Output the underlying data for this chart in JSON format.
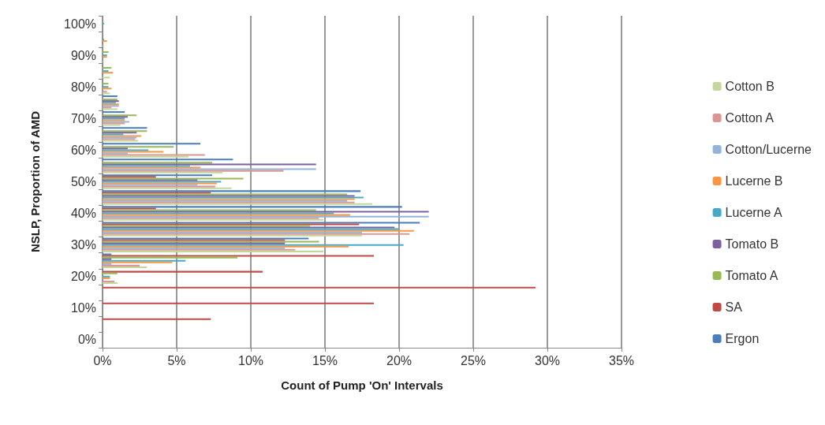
{
  "chart_data": {
    "type": "bar",
    "orientation": "horizontal",
    "xlabel": "Count of Pump 'On' Intervals",
    "ylabel": "NSLP, Proportion of AMD",
    "categories": [
      "100%",
      null,
      "90%",
      null,
      "80%",
      null,
      "70%",
      null,
      "60%",
      null,
      "50%",
      null,
      "40%",
      null,
      "30%",
      null,
      "20%",
      null,
      "10%",
      null,
      "0%"
    ],
    "xlim": [
      0,
      35
    ],
    "xticks": [
      {
        "value": 0,
        "label": "0%"
      },
      {
        "value": 5,
        "label": "5%"
      },
      {
        "value": 10,
        "label": "10%"
      },
      {
        "value": 15,
        "label": "15%"
      },
      {
        "value": 20,
        "label": "20%"
      },
      {
        "value": 25,
        "label": "25%"
      },
      {
        "value": 30,
        "label": "30%"
      },
      {
        "value": 35,
        "label": "35%"
      }
    ],
    "grid": "x",
    "legend": "right",
    "series": [
      {
        "name": "Ergon",
        "color": "#4a7ebb",
        "values": [
          0,
          0,
          0,
          0,
          0,
          1.0,
          1.5,
          3.0,
          6.6,
          8.8,
          7.4,
          17.4,
          20.2,
          21.4,
          13.9,
          0.6,
          0,
          0,
          0,
          0,
          0
        ]
      },
      {
        "name": "SA",
        "color": "#be4b48",
        "values": [
          0,
          0,
          0,
          0,
          0,
          0,
          0,
          0,
          0,
          0,
          3.6,
          7.3,
          3.6,
          17.3,
          12.3,
          18.3,
          10.8,
          29.2,
          18.3,
          7.3,
          0
        ]
      },
      {
        "name": "Tomato A",
        "color": "#98b954",
        "values": [
          0,
          0,
          0.4,
          0.6,
          0.4,
          1.0,
          2.3,
          3.0,
          4.8,
          7.4,
          9.5,
          16.5,
          14.4,
          14.0,
          14.6,
          9.1,
          1.0,
          0,
          0,
          0,
          0
        ]
      },
      {
        "name": "Tomato B",
        "color": "#7d60a0",
        "values": [
          0,
          0,
          0,
          0,
          0,
          1.1,
          1.7,
          2.3,
          1.7,
          14.4,
          6.4,
          17.0,
          22.0,
          19.7,
          12.3,
          0.6,
          0,
          0,
          0,
          0,
          0
        ]
      },
      {
        "name": "Lucerne A",
        "color": "#46aac5",
        "values": [
          0.1,
          0.1,
          0.3,
          0.4,
          0.4,
          0.9,
          1.5,
          1.4,
          3.1,
          5.9,
          8.0,
          17.6,
          15.6,
          20.0,
          20.3,
          5.6,
          0.5,
          0,
          0,
          0,
          0
        ]
      },
      {
        "name": "Lucerne B",
        "color": "#f79646",
        "values": [
          0,
          0.3,
          0.3,
          0.7,
          0.6,
          1.1,
          1.5,
          2.6,
          4.1,
          6.6,
          7.7,
          17.0,
          16.7,
          21.0,
          16.6,
          4.7,
          0.5,
          0,
          0,
          0,
          0
        ]
      },
      {
        "name": "Cotton/Lucerne",
        "color": "#95b3d7",
        "values": [
          0,
          0,
          0,
          0,
          0,
          1.1,
          1.8,
          2.3,
          1.7,
          14.4,
          6.4,
          16.5,
          22.0,
          17.5,
          12.3,
          0.6,
          0,
          0,
          0,
          0,
          0
        ]
      },
      {
        "name": "Cotton A",
        "color": "#d99694",
        "values": [
          0,
          0,
          0,
          0,
          0.3,
          0.6,
          1.5,
          2.2,
          6.9,
          12.2,
          7.6,
          17.0,
          14.6,
          20.7,
          13.0,
          2.5,
          0.8,
          0,
          0,
          0,
          0
        ]
      },
      {
        "name": "Cotton B",
        "color": "#c3d69b",
        "values": [
          0,
          0.1,
          0.1,
          0.5,
          0.5,
          1.0,
          1.2,
          2.4,
          5.8,
          8.1,
          8.7,
          18.2,
          14.9,
          17.5,
          14.9,
          3.0,
          1.0,
          0,
          0,
          0,
          0
        ]
      }
    ]
  }
}
